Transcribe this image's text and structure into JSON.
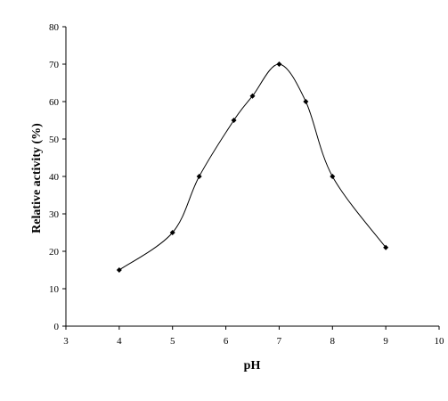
{
  "chart_data": {
    "type": "line",
    "title": "",
    "xlabel": "pH",
    "ylabel": "Relative activity (%)",
    "xlim": [
      3,
      10
    ],
    "ylim": [
      0,
      80
    ],
    "xticks": [
      3,
      4,
      5,
      6,
      7,
      8,
      9,
      10
    ],
    "yticks": [
      0,
      10,
      20,
      30,
      40,
      50,
      60,
      70,
      80
    ],
    "grid": false,
    "line_color": "#000000",
    "marker": "diamond",
    "series": [
      {
        "x": [
          4,
          5,
          5.5,
          6.15,
          6.5,
          7,
          7.5,
          8,
          9
        ],
        "values": [
          15,
          25,
          40,
          55,
          61.5,
          70,
          60,
          40,
          21
        ]
      }
    ]
  }
}
